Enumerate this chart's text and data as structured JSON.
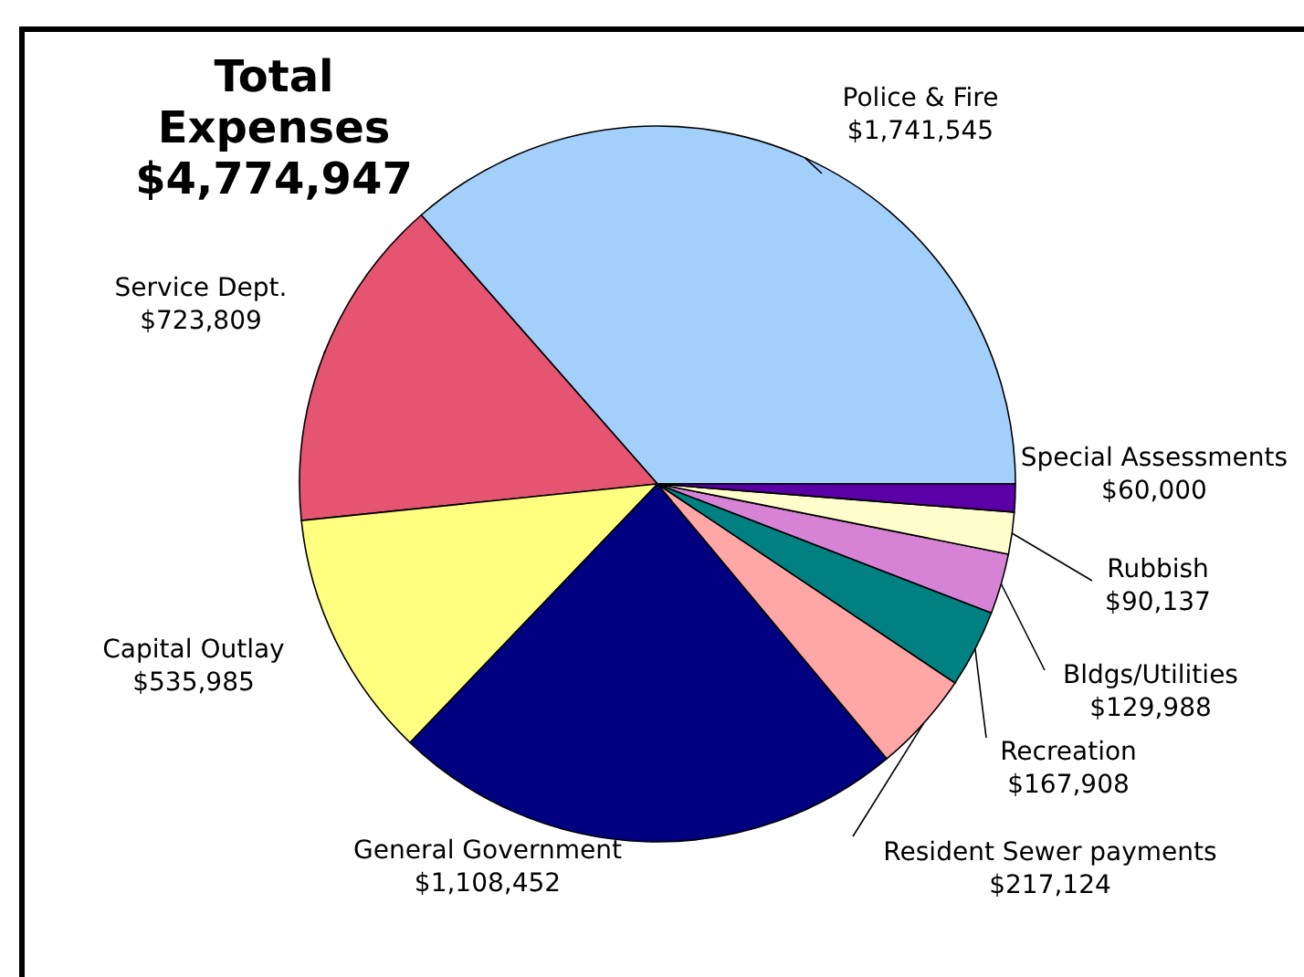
{
  "chart_data": {
    "type": "pie",
    "title": "Total Expenses $4,774,947",
    "categories": [
      "Police & Fire",
      "Service Dept.",
      "Capital Outlay",
      "General Government",
      "Resident Sewer payments",
      "Recreation",
      "Bldgs/Utilities",
      "Rubbish",
      "Special Assessments"
    ],
    "values": [
      1741545,
      723809,
      535985,
      1108452,
      217124,
      167908,
      129988,
      90137,
      60000
    ],
    "value_labels": [
      "$1,741,545",
      "$723,809",
      "$535,985",
      "$1,108,452",
      "$217,124",
      "$167,908",
      "$129,988",
      "$90,137",
      "$60,000"
    ],
    "colors": [
      "#a3cffb",
      "#e55470",
      "#ffff80",
      "#000080",
      "#ffa6a6",
      "#008080",
      "#d683d6",
      "#ffffcc",
      "#5a00a6"
    ]
  }
}
